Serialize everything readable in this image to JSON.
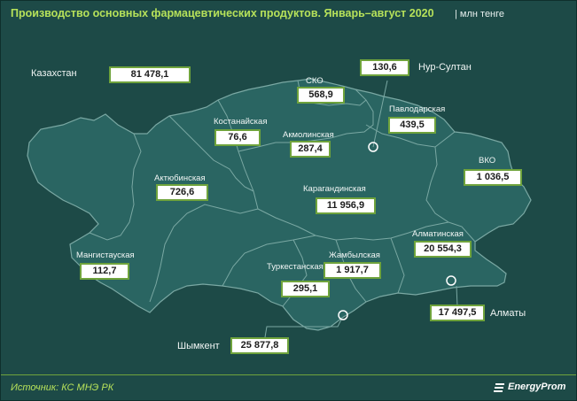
{
  "header": {
    "title": "Производство основных фармацевтических продуктов. Январь–август 2020",
    "unit": "| млн тенге"
  },
  "colors": {
    "background": "#1d4a47",
    "land": "#2a6562",
    "border_line": "#7aa8a3",
    "title": "#b6e15a",
    "box_border": "#6fa33c"
  },
  "total": {
    "label": "Казахстан",
    "value": "81 478,1"
  },
  "regions": [
    {
      "name": "Нур-Султан",
      "value": "130,6"
    },
    {
      "name": "СКО",
      "value": "568,9"
    },
    {
      "name": "Павлодарская",
      "value": "439,5"
    },
    {
      "name": "Костанайская",
      "value": "76,6"
    },
    {
      "name": "Акмолинская",
      "value": "287,4"
    },
    {
      "name": "ВКО",
      "value": "1 036,5"
    },
    {
      "name": "Актюбинская",
      "value": "726,6"
    },
    {
      "name": "Карагандинская",
      "value": "11 956,9"
    },
    {
      "name": "Алматинская",
      "value": "20 554,3"
    },
    {
      "name": "Жамбылская",
      "value": "1 917,7"
    },
    {
      "name": "Туркестанская",
      "value": "295,1"
    },
    {
      "name": "Мангистауская",
      "value": "112,7"
    },
    {
      "name": "Алматы",
      "value": "17 497,5"
    },
    {
      "name": "Шымкент",
      "value": "25 877,8"
    }
  ],
  "footer": {
    "source": "Источник: КС МНЭ РК",
    "logo": "EnergyProm"
  }
}
